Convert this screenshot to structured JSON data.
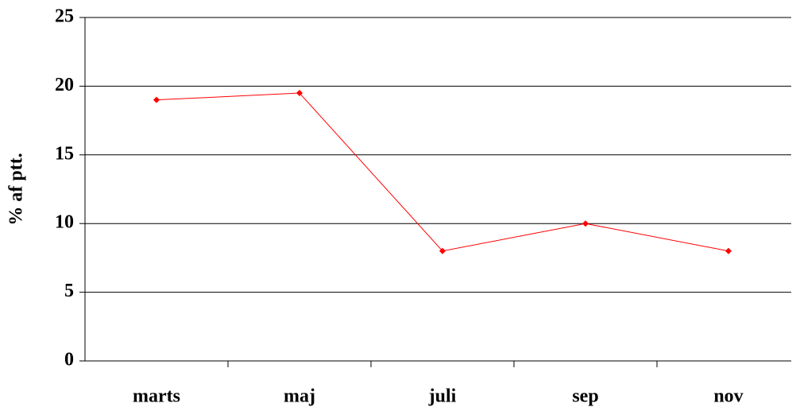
{
  "chart_data": {
    "type": "line",
    "y_label": "% af ptt.",
    "categories": [
      "marts",
      "maj",
      "juli",
      "sep",
      "nov"
    ],
    "values": [
      19,
      19.5,
      8,
      10,
      8
    ],
    "color": "#ff0000",
    "ylim": [
      0,
      25
    ],
    "yticks": [
      0,
      5,
      10,
      15,
      20,
      25
    ],
    "grid": true
  }
}
